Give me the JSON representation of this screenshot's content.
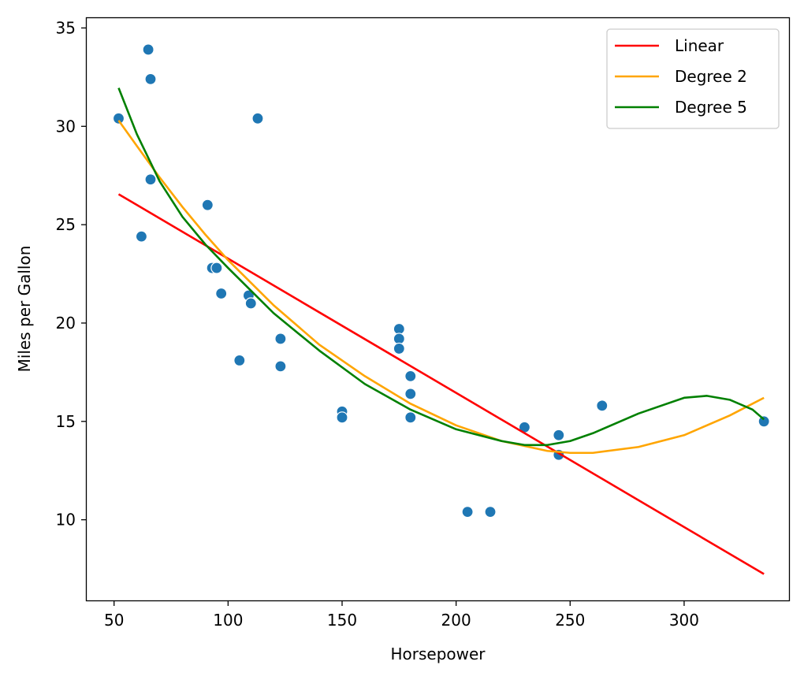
{
  "chart_data": {
    "type": "scatter",
    "title": "",
    "xlabel": "Horsepower",
    "ylabel": "Miles per Gallon",
    "xlim": [
      38,
      346
    ],
    "ylim": [
      5.9,
      35.5
    ],
    "xticks": [
      50,
      100,
      150,
      200,
      250,
      300
    ],
    "yticks": [
      10,
      15,
      20,
      25,
      30,
      35
    ],
    "grid": false,
    "legend_position": "top-right",
    "points": {
      "color": "#1f77b4",
      "x": [
        52,
        65,
        66,
        66,
        62,
        91,
        93,
        95,
        97,
        109,
        110,
        113,
        105,
        123,
        123,
        150,
        150,
        175,
        175,
        175,
        180,
        180,
        180,
        205,
        215,
        230,
        245,
        245,
        264,
        335
      ],
      "y": [
        30.4,
        33.9,
        32.4,
        27.3,
        24.4,
        26.0,
        22.8,
        22.8,
        21.5,
        21.4,
        21.0,
        30.4,
        18.1,
        19.2,
        17.8,
        15.5,
        15.2,
        19.7,
        19.2,
        18.7,
        17.3,
        16.4,
        15.2,
        10.4,
        10.4,
        14.7,
        14.3,
        13.3,
        15.8,
        15.0
      ]
    },
    "series": [
      {
        "name": "Linear",
        "color": "#ff0000",
        "x": [
          52,
          335
        ],
        "y": [
          26.55,
          7.24
        ]
      },
      {
        "name": "Degree 2",
        "color": "#ffa500",
        "x": [
          52,
          60,
          70,
          80,
          90,
          100,
          120,
          140,
          160,
          180,
          200,
          220,
          240,
          250,
          260,
          280,
          300,
          320,
          335
        ],
        "y": [
          30.3,
          29.0,
          27.4,
          25.9,
          24.5,
          23.2,
          20.9,
          18.9,
          17.3,
          15.9,
          14.8,
          14.0,
          13.5,
          13.4,
          13.4,
          13.7,
          14.3,
          15.3,
          16.2
        ]
      },
      {
        "name": "Degree 5",
        "color": "#008000",
        "x": [
          52,
          60,
          70,
          80,
          90,
          100,
          120,
          140,
          160,
          180,
          200,
          220,
          230,
          240,
          250,
          260,
          280,
          300,
          310,
          320,
          330,
          335
        ],
        "y": [
          31.95,
          29.6,
          27.2,
          25.4,
          24.0,
          22.8,
          20.5,
          18.6,
          16.9,
          15.6,
          14.6,
          14.0,
          13.8,
          13.8,
          14.0,
          14.4,
          15.4,
          16.2,
          16.3,
          16.1,
          15.6,
          15.1
        ]
      }
    ]
  }
}
